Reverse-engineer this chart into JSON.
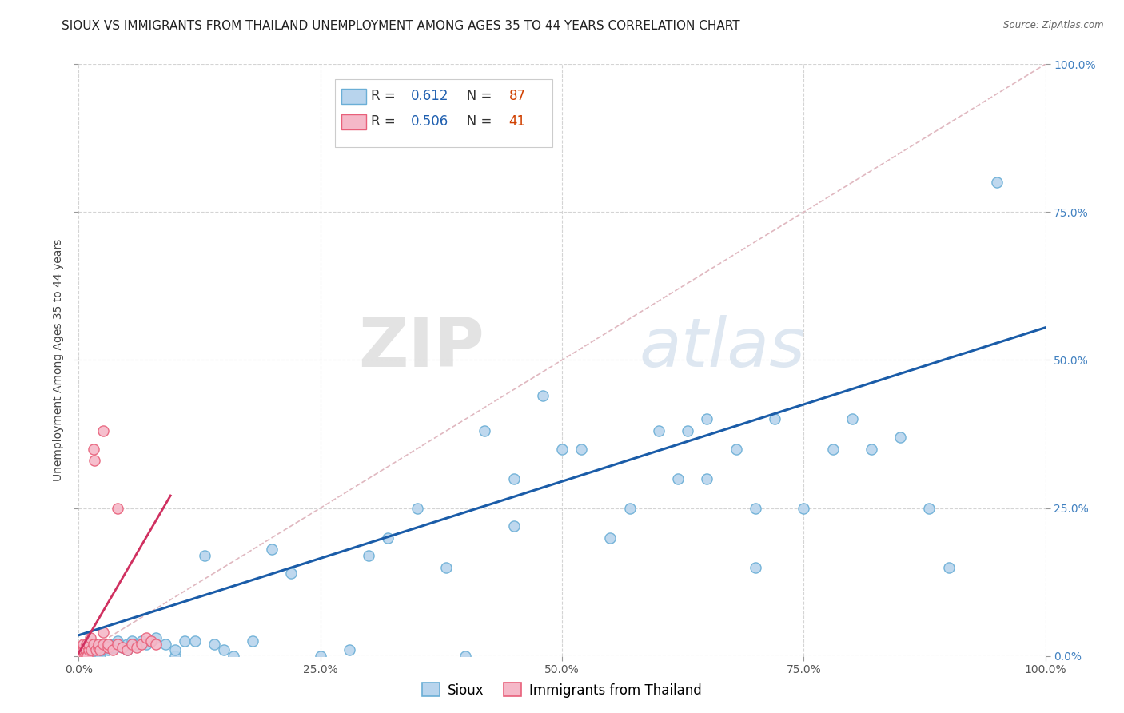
{
  "title": "SIOUX VS IMMIGRANTS FROM THAILAND UNEMPLOYMENT AMONG AGES 35 TO 44 YEARS CORRELATION CHART",
  "source": "Source: ZipAtlas.com",
  "ylabel": "Unemployment Among Ages 35 to 44 years",
  "xlim": [
    0,
    1.0
  ],
  "ylim": [
    0,
    1.0
  ],
  "xticks": [
    0.0,
    0.25,
    0.5,
    0.75,
    1.0
  ],
  "yticks": [
    0.0,
    0.25,
    0.5,
    0.75,
    1.0
  ],
  "xtick_labels": [
    "0.0%",
    "25.0%",
    "50.0%",
    "75.0%",
    "100.0%"
  ],
  "ytick_labels": [
    "0.0%",
    "25.0%",
    "50.0%",
    "75.0%",
    "100.0%"
  ],
  "watermark_zip": "ZIP",
  "watermark_atlas": "atlas",
  "sioux_color": "#b8d4ed",
  "sioux_edge_color": "#6aaed6",
  "thailand_color": "#f5b8c8",
  "thailand_edge_color": "#e8607a",
  "sioux_R": "0.612",
  "sioux_N": "87",
  "thailand_R": "0.506",
  "thailand_N": "41",
  "sioux_line_color": "#1a5ca8",
  "thailand_line_color": "#d03060",
  "diagonal_color": "#e0b8c0",
  "sioux_line_intercept": 0.035,
  "sioux_line_slope": 0.52,
  "thailand_line_intercept": 0.005,
  "thailand_line_slope": 2.8,
  "thailand_line_xmax": 0.095,
  "background_color": "#ffffff",
  "grid_color": "#d0d0d0",
  "title_fontsize": 11,
  "axis_fontsize": 10,
  "tick_fontsize": 10,
  "legend_fontsize": 12,
  "right_tick_color": "#4080c0",
  "marker_size": 90,
  "marker_linewidth": 1.0,
  "sioux_points": [
    [
      0.001,
      0.0
    ],
    [
      0.002,
      0.0
    ],
    [
      0.003,
      0.0
    ],
    [
      0.004,
      0.0
    ],
    [
      0.005,
      0.0
    ],
    [
      0.006,
      0.0
    ],
    [
      0.007,
      0.0
    ],
    [
      0.008,
      0.0
    ],
    [
      0.009,
      0.0
    ],
    [
      0.01,
      0.0
    ],
    [
      0.01,
      0.01
    ],
    [
      0.012,
      0.0
    ],
    [
      0.013,
      0.0
    ],
    [
      0.014,
      0.0
    ],
    [
      0.015,
      0.01
    ],
    [
      0.015,
      0.02
    ],
    [
      0.016,
      0.0
    ],
    [
      0.018,
      0.01
    ],
    [
      0.019,
      0.0
    ],
    [
      0.02,
      0.015
    ],
    [
      0.02,
      0.02
    ],
    [
      0.022,
      0.0
    ],
    [
      0.023,
      0.01
    ],
    [
      0.025,
      0.01
    ],
    [
      0.025,
      0.02
    ],
    [
      0.027,
      0.015
    ],
    [
      0.03,
      0.01
    ],
    [
      0.03,
      0.015
    ],
    [
      0.032,
      0.02
    ],
    [
      0.035,
      0.015
    ],
    [
      0.035,
      0.02
    ],
    [
      0.038,
      0.015
    ],
    [
      0.04,
      0.02
    ],
    [
      0.04,
      0.025
    ],
    [
      0.045,
      0.015
    ],
    [
      0.05,
      0.01
    ],
    [
      0.05,
      0.02
    ],
    [
      0.055,
      0.025
    ],
    [
      0.06,
      0.02
    ],
    [
      0.065,
      0.025
    ],
    [
      0.07,
      0.02
    ],
    [
      0.075,
      0.025
    ],
    [
      0.08,
      0.03
    ],
    [
      0.09,
      0.02
    ],
    [
      0.1,
      0.0
    ],
    [
      0.1,
      0.01
    ],
    [
      0.11,
      0.025
    ],
    [
      0.12,
      0.025
    ],
    [
      0.13,
      0.17
    ],
    [
      0.14,
      0.02
    ],
    [
      0.15,
      0.01
    ],
    [
      0.16,
      0.0
    ],
    [
      0.18,
      0.025
    ],
    [
      0.2,
      0.18
    ],
    [
      0.22,
      0.14
    ],
    [
      0.25,
      0.0
    ],
    [
      0.28,
      0.01
    ],
    [
      0.3,
      0.17
    ],
    [
      0.32,
      0.2
    ],
    [
      0.35,
      0.25
    ],
    [
      0.38,
      0.15
    ],
    [
      0.4,
      0.0
    ],
    [
      0.42,
      0.38
    ],
    [
      0.45,
      0.3
    ],
    [
      0.45,
      0.22
    ],
    [
      0.48,
      0.44
    ],
    [
      0.5,
      0.35
    ],
    [
      0.52,
      0.35
    ],
    [
      0.55,
      0.2
    ],
    [
      0.57,
      0.25
    ],
    [
      0.6,
      0.38
    ],
    [
      0.62,
      0.3
    ],
    [
      0.63,
      0.38
    ],
    [
      0.65,
      0.4
    ],
    [
      0.65,
      0.3
    ],
    [
      0.68,
      0.35
    ],
    [
      0.7,
      0.25
    ],
    [
      0.7,
      0.15
    ],
    [
      0.72,
      0.4
    ],
    [
      0.75,
      0.25
    ],
    [
      0.78,
      0.35
    ],
    [
      0.8,
      0.4
    ],
    [
      0.82,
      0.35
    ],
    [
      0.85,
      0.37
    ],
    [
      0.88,
      0.25
    ],
    [
      0.9,
      0.15
    ],
    [
      0.95,
      0.8
    ]
  ],
  "thailand_points": [
    [
      0.001,
      0.0
    ],
    [
      0.002,
      0.0
    ],
    [
      0.002,
      0.01
    ],
    [
      0.003,
      0.0
    ],
    [
      0.003,
      0.01
    ],
    [
      0.004,
      0.0
    ],
    [
      0.004,
      0.01
    ],
    [
      0.005,
      0.01
    ],
    [
      0.005,
      0.02
    ],
    [
      0.006,
      0.0
    ],
    [
      0.007,
      0.01
    ],
    [
      0.008,
      0.02
    ],
    [
      0.008,
      0.0
    ],
    [
      0.009,
      0.0
    ],
    [
      0.01,
      0.01
    ],
    [
      0.01,
      0.02
    ],
    [
      0.012,
      0.03
    ],
    [
      0.013,
      0.01
    ],
    [
      0.015,
      0.02
    ],
    [
      0.015,
      0.35
    ],
    [
      0.016,
      0.33
    ],
    [
      0.018,
      0.01
    ],
    [
      0.02,
      0.015
    ],
    [
      0.02,
      0.02
    ],
    [
      0.022,
      0.01
    ],
    [
      0.025,
      0.02
    ],
    [
      0.025,
      0.04
    ],
    [
      0.025,
      0.38
    ],
    [
      0.03,
      0.015
    ],
    [
      0.03,
      0.02
    ],
    [
      0.035,
      0.01
    ],
    [
      0.04,
      0.02
    ],
    [
      0.04,
      0.25
    ],
    [
      0.045,
      0.015
    ],
    [
      0.05,
      0.01
    ],
    [
      0.055,
      0.02
    ],
    [
      0.06,
      0.015
    ],
    [
      0.065,
      0.02
    ],
    [
      0.07,
      0.03
    ],
    [
      0.075,
      0.025
    ],
    [
      0.08,
      0.02
    ]
  ]
}
